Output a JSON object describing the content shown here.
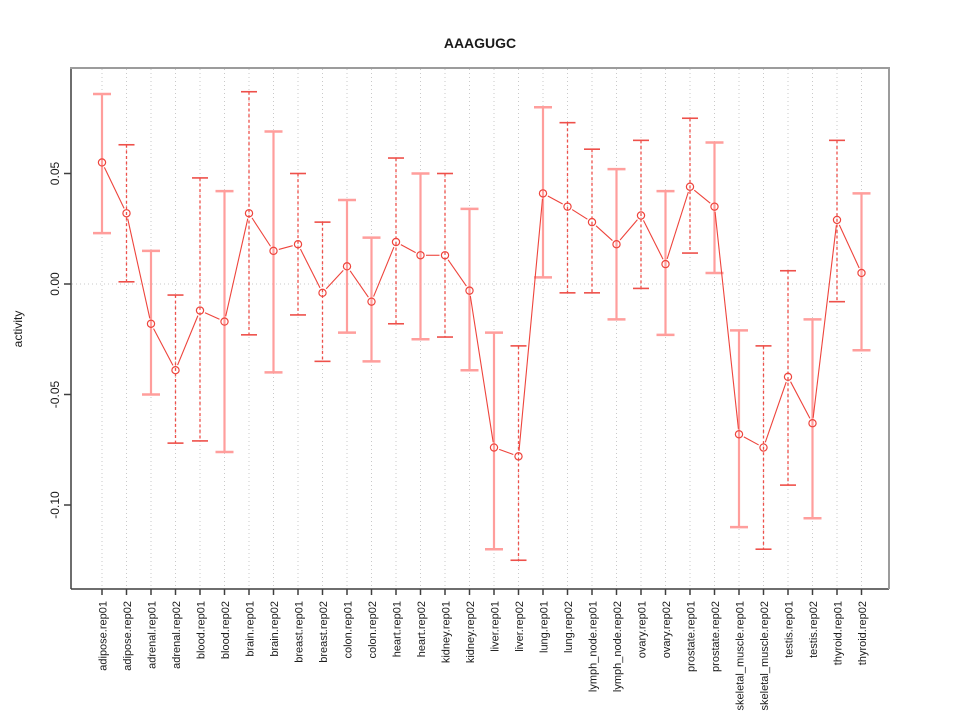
{
  "page": {
    "background": "#ffffff"
  },
  "chart_data": {
    "type": "scatter",
    "subtype": "points-with-error-bars-connected-line",
    "title": "AAAGUGC",
    "xlabel": "",
    "ylabel": "activity",
    "legend": "none",
    "grid": "vertical dotted line per category plus dotted horizontal zero line",
    "ylim": [
      -0.137,
      0.098
    ],
    "yticks": [
      0.05,
      0.0,
      -0.05,
      -0.1
    ],
    "ytick_labels": [
      "0.05",
      "0.00",
      "-0.05",
      "-0.10"
    ],
    "categories": [
      "adipose.rep01",
      "adipose.rep02",
      "adrenal.rep01",
      "adrenal.rep02",
      "blood.rep01",
      "blood.rep02",
      "brain.rep01",
      "brain.rep02",
      "breast.rep01",
      "breast.rep02",
      "colon.rep01",
      "colon.rep02",
      "heart.rep01",
      "heart.rep02",
      "kidney.rep01",
      "kidney.rep02",
      "liver.rep01",
      "liver.rep02",
      "lung.rep01",
      "lung.rep02",
      "lymph_node.rep01",
      "lymph_node.rep02",
      "ovary.rep01",
      "ovary.rep02",
      "prostate.rep01",
      "prostate.rep02",
      "skeletal_muscle.rep01",
      "skeletal_muscle.rep02",
      "testis.rep01",
      "testis.rep02",
      "thyroid.rep01",
      "thyroid.rep02"
    ],
    "series": [
      {
        "name": "activity",
        "values": [
          0.055,
          0.032,
          -0.018,
          -0.039,
          -0.012,
          -0.017,
          0.032,
          0.015,
          0.018,
          -0.004,
          0.008,
          -0.008,
          0.019,
          0.013,
          0.013,
          -0.003,
          -0.074,
          -0.078,
          0.041,
          0.035,
          0.028,
          0.018,
          0.031,
          0.009,
          0.044,
          0.035,
          -0.068,
          -0.074,
          -0.042,
          -0.063,
          0.029,
          0.005
        ],
        "error_low": [
          0.023,
          0.001,
          -0.05,
          -0.072,
          -0.071,
          -0.076,
          -0.023,
          -0.04,
          -0.014,
          -0.035,
          -0.022,
          -0.035,
          -0.018,
          -0.025,
          -0.024,
          -0.039,
          -0.12,
          -0.125,
          0.003,
          -0.004,
          -0.004,
          -0.016,
          -0.002,
          -0.023,
          0.014,
          0.005,
          -0.11,
          -0.12,
          -0.091,
          -0.106,
          -0.008,
          -0.03
        ],
        "error_high": [
          0.086,
          0.063,
          0.015,
          -0.005,
          0.048,
          0.042,
          0.087,
          0.069,
          0.05,
          0.028,
          0.038,
          0.021,
          0.057,
          0.05,
          0.05,
          0.034,
          -0.022,
          -0.028,
          0.08,
          0.073,
          0.061,
          0.052,
          0.065,
          0.042,
          0.075,
          0.064,
          -0.021,
          -0.028,
          0.006,
          -0.016,
          0.065,
          0.041
        ],
        "bar_styles": [
          "solid",
          "dashed",
          "solid",
          "dashed",
          "dashed",
          "solid",
          "dashed",
          "solid",
          "dashed",
          "dashed",
          "solid",
          "solid",
          "dashed",
          "solid",
          "dashed",
          "solid",
          "solid",
          "dashed",
          "solid",
          "dashed",
          "dashed",
          "solid",
          "dashed",
          "solid",
          "dashed",
          "solid",
          "solid",
          "dashed",
          "dashed",
          "solid",
          "dashed",
          "solid"
        ]
      }
    ],
    "colors": {
      "point_line": "#ee443c",
      "errorbar_solid": "#ff9e9c",
      "errorbar_dashed": "#ee504a",
      "gridline": "#c9c9c9",
      "axis_dark": "#3f3f3f",
      "frame_light": "#9c9c9c",
      "text": "#1a1a1a"
    },
    "marker": "open-circle"
  }
}
